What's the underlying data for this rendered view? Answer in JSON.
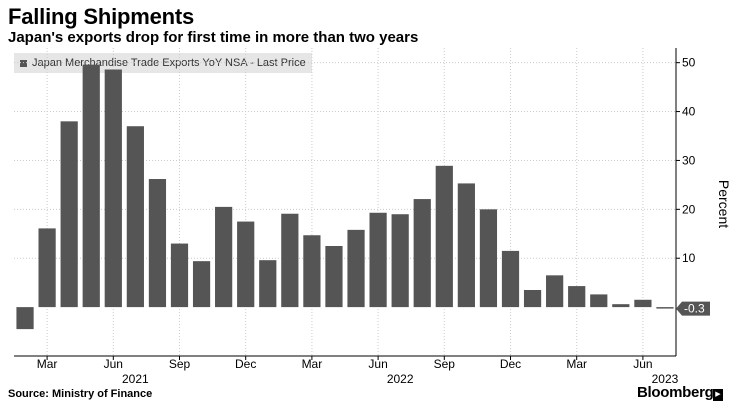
{
  "title": "Falling Shipments",
  "subtitle": "Japan's exports drop for first time in more than two years",
  "legend": "Japan Merchandise Trade Exports YoY NSA - Last Price",
  "source": "Source: Ministry of Finance",
  "brand": "Bloomberg",
  "chart_data": {
    "type": "bar",
    "ylabel": "Percent",
    "ylim": [
      -10,
      53
    ],
    "yticks": [
      10,
      20,
      30,
      40,
      50
    ],
    "last_value_label": "-0.3",
    "month_ticks": [
      {
        "index": 1,
        "label": "Mar"
      },
      {
        "index": 4,
        "label": "Jun"
      },
      {
        "index": 7,
        "label": "Sep"
      },
      {
        "index": 10,
        "label": "Dec"
      },
      {
        "index": 13,
        "label": "Mar"
      },
      {
        "index": 16,
        "label": "Jun"
      },
      {
        "index": 19,
        "label": "Sep"
      },
      {
        "index": 22,
        "label": "Dec"
      },
      {
        "index": 25,
        "label": "Mar"
      },
      {
        "index": 28,
        "label": "Jun"
      }
    ],
    "year_labels": [
      {
        "index": 5,
        "label": "2021"
      },
      {
        "index": 17,
        "label": "2022"
      },
      {
        "index": 29,
        "label": "2023"
      }
    ],
    "categories": [
      "Feb 2021",
      "Mar 2021",
      "Apr 2021",
      "May 2021",
      "Jun 2021",
      "Jul 2021",
      "Aug 2021",
      "Sep 2021",
      "Oct 2021",
      "Nov 2021",
      "Dec 2021",
      "Jan 2022",
      "Feb 2022",
      "Mar 2022",
      "Apr 2022",
      "May 2022",
      "Jun 2022",
      "Jul 2022",
      "Aug 2022",
      "Sep 2022",
      "Oct 2022",
      "Nov 2022",
      "Dec 2022",
      "Jan 2023",
      "Feb 2023",
      "Mar 2023",
      "Apr 2023",
      "May 2023",
      "Jun 2023",
      "Jul 2023"
    ],
    "values": [
      -4.5,
      16.1,
      38.0,
      49.6,
      48.6,
      37.0,
      26.2,
      13.0,
      9.4,
      20.5,
      17.5,
      9.6,
      19.1,
      14.7,
      12.5,
      15.8,
      19.3,
      19.0,
      22.1,
      28.9,
      25.3,
      20.0,
      11.5,
      3.5,
      6.5,
      4.3,
      2.6,
      0.6,
      1.5,
      -0.3
    ]
  }
}
